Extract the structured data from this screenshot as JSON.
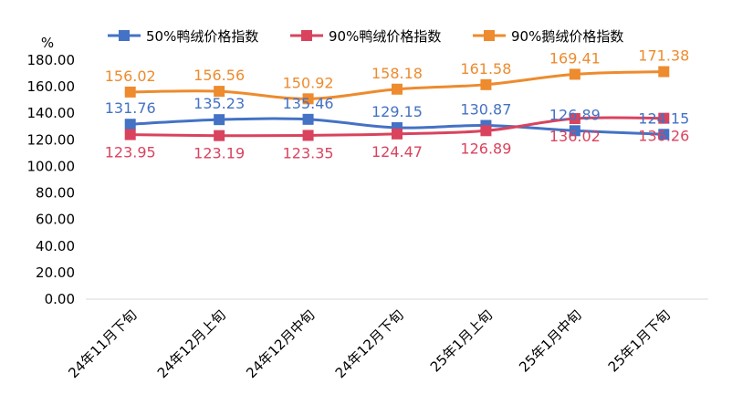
{
  "chart_data": {
    "type": "line",
    "unit_label": "%",
    "categories": [
      "24年11月下旬",
      "24年12月上旬",
      "24年12月中旬",
      "24年12月下旬",
      "25年1月上旬",
      "25年1月中旬",
      "25年1月下旬"
    ],
    "ylim": [
      0,
      180
    ],
    "ytick_labels": [
      "0.00",
      "20.00",
      "40.00",
      "60.00",
      "80.00",
      "100.00",
      "120.00",
      "140.00",
      "160.00",
      "180.00"
    ],
    "grid": false,
    "legend_position": "top",
    "series": [
      {
        "name": "50%鸭绒价格指数",
        "color": "#4472C4",
        "marker": "square",
        "label_position": "above",
        "values": [
          131.76,
          135.23,
          135.46,
          129.15,
          130.87,
          126.89,
          124.15
        ]
      },
      {
        "name": "90%鸭绒价格指数",
        "color": "#D9435E",
        "marker": "square",
        "label_position": "below",
        "values": [
          123.95,
          123.19,
          123.35,
          124.47,
          126.89,
          136.02,
          136.26
        ]
      },
      {
        "name": "90%鹅绒价格指数",
        "color": "#ED8B2E",
        "marker": "square",
        "label_position": "above",
        "values": [
          156.02,
          156.56,
          150.92,
          158.18,
          161.58,
          169.41,
          171.38
        ]
      }
    ]
  }
}
